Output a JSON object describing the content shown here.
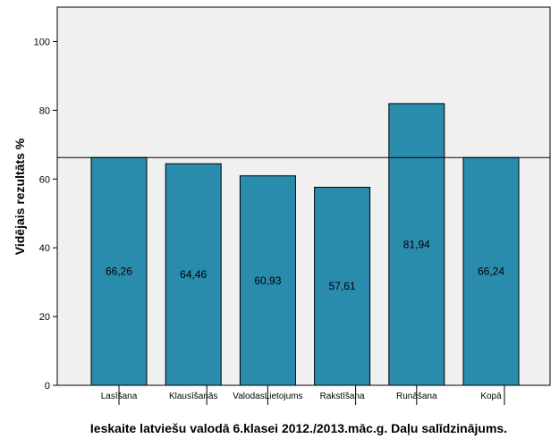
{
  "chart_data": {
    "type": "bar",
    "title": "",
    "xlabel": "Ieskaite latviešu valodā 6.klasei 2012./2013.māc.g. Daļu salīdzinājums.",
    "ylabel": "Vidējais rezultāts %",
    "categories": [
      "Lasīšana",
      "Klausīšanās",
      "ValodasLietojums",
      "Rakstīšana",
      "Runāšana",
      "Kopā"
    ],
    "values": [
      66.26,
      64.46,
      60.93,
      57.61,
      81.94,
      66.24
    ],
    "data_labels": [
      "66,26",
      "64,46",
      "60,93",
      "57,61",
      "81,94",
      "66,24"
    ],
    "ylim": [
      0,
      110
    ],
    "yticks": [
      0,
      20,
      40,
      60,
      80,
      100
    ],
    "ytick_labels": [
      "0",
      "20",
      "40",
      "60",
      "80",
      "100"
    ],
    "reference_line": 66.24,
    "grid": false,
    "colors": {
      "bar_fill": "#2a8cad",
      "bar_stroke": "#000000",
      "plot_background": "#f0f0f0",
      "reference_line": "#000000"
    }
  }
}
